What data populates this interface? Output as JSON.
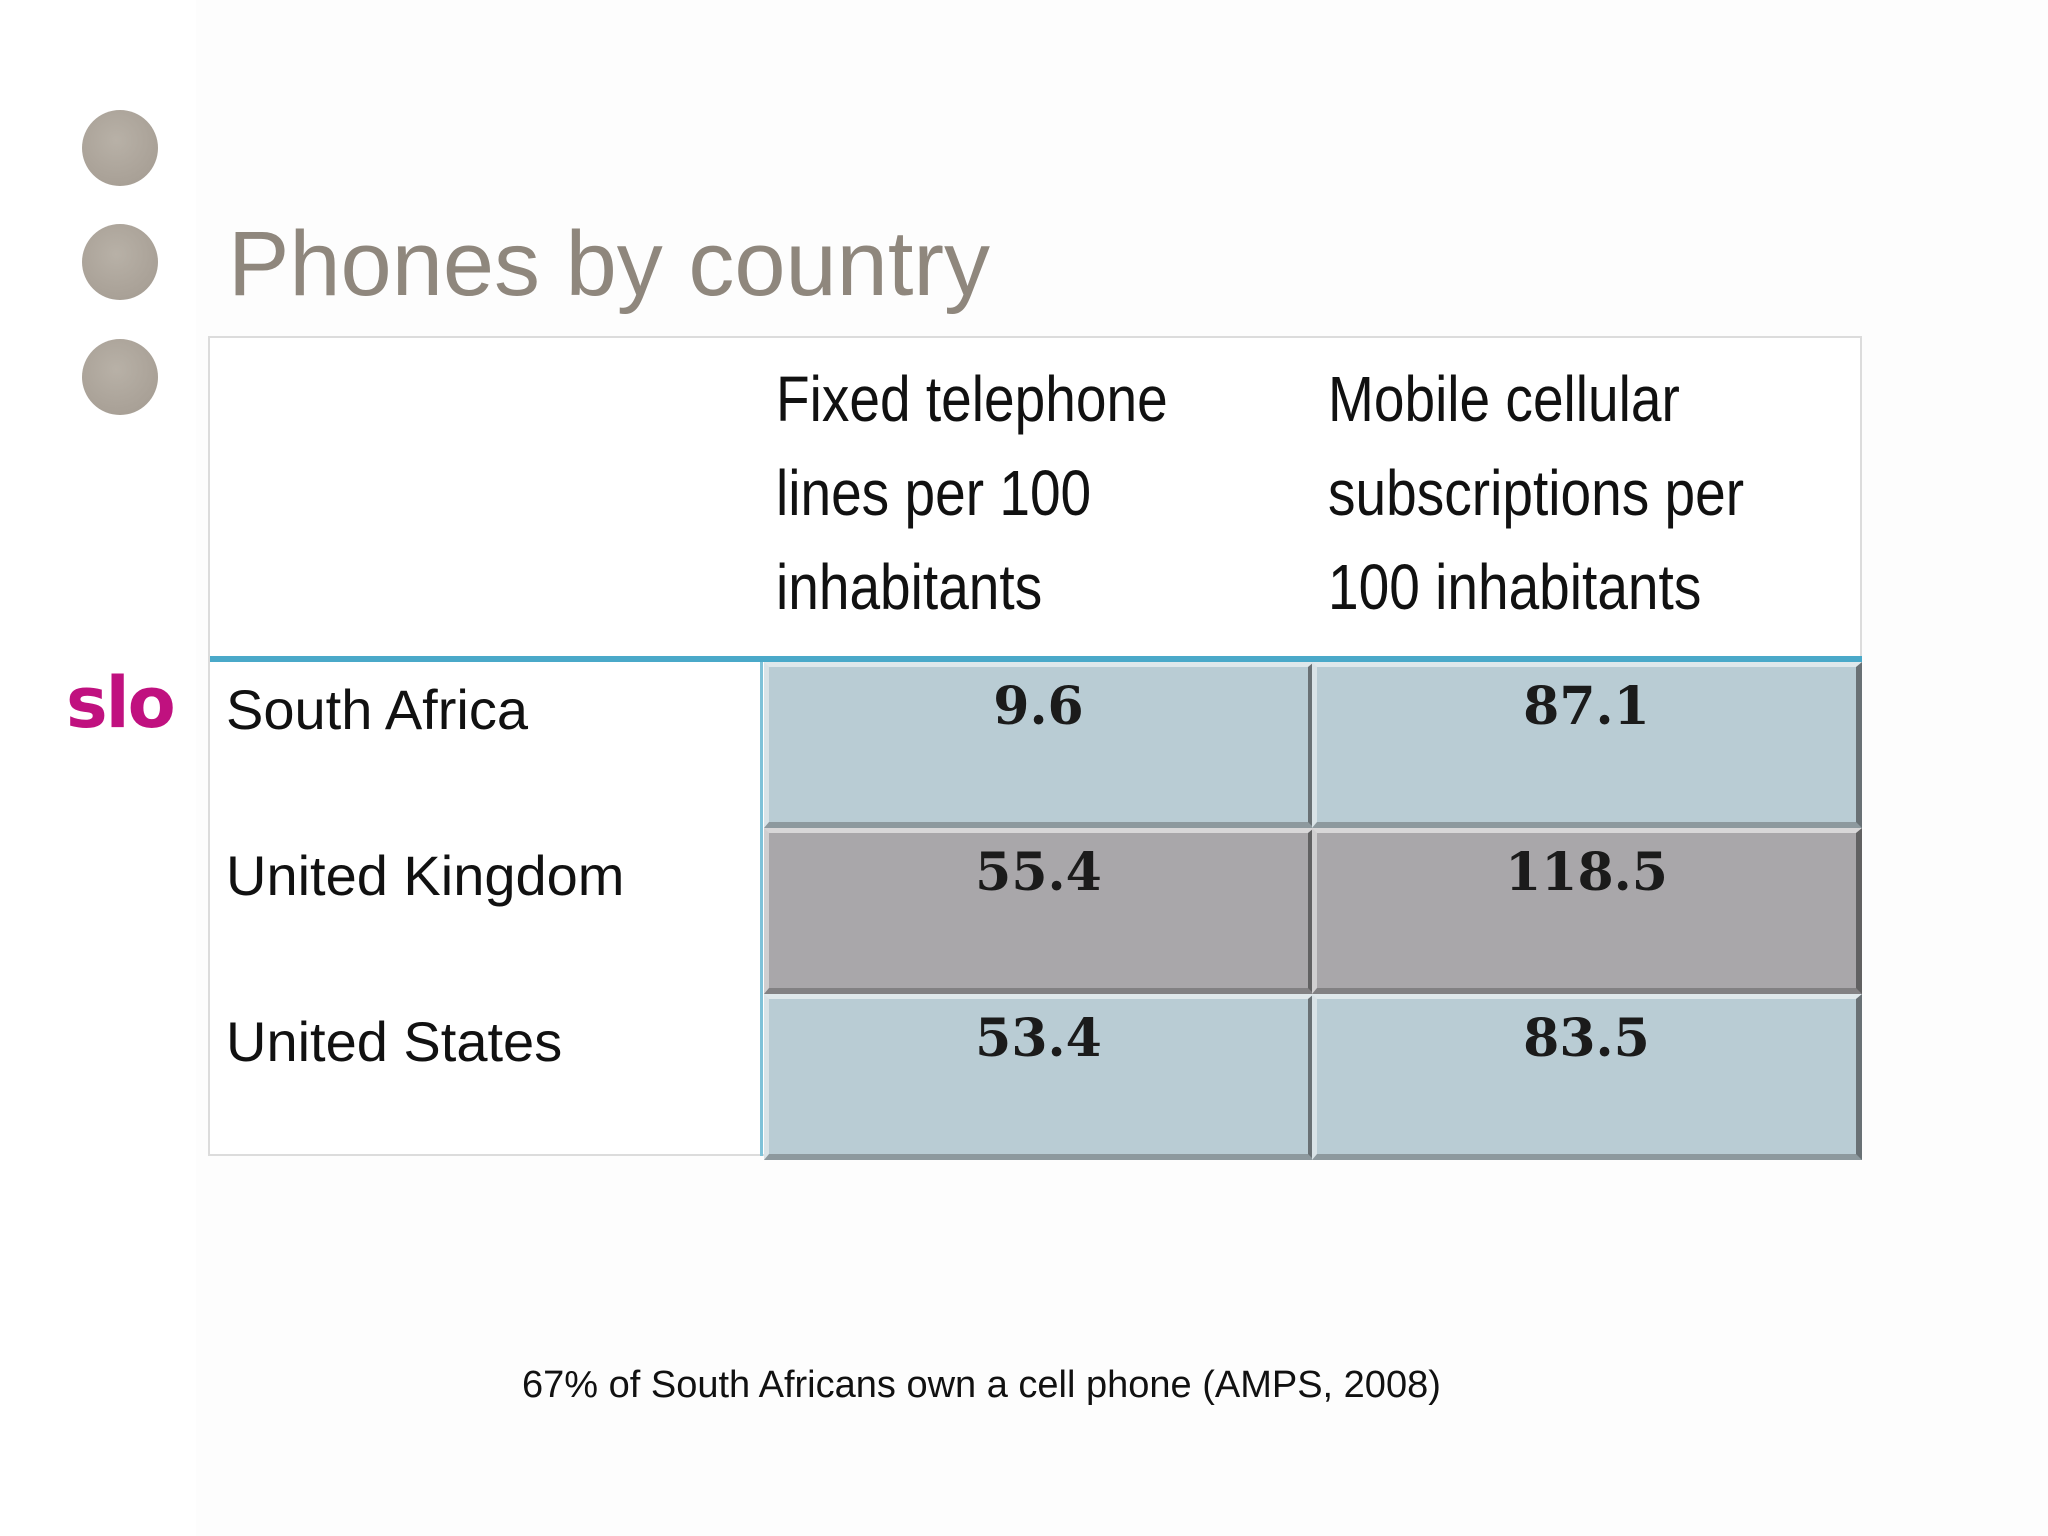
{
  "slide": {
    "title": "Phones by country",
    "logo_text": "slo",
    "footnote": "67% of South Africans own a cell phone (AMPS, 2008)"
  },
  "table": {
    "columns": [
      {
        "header_lines": [
          "Fixed telephone",
          "lines per 100",
          "inhabitants"
        ]
      },
      {
        "header_lines": [
          "Mobile cellular",
          "subscriptions per",
          "100 inhabitants"
        ]
      }
    ],
    "rows": [
      {
        "country": "South Africa",
        "fixed": "9.6",
        "mobile": "87.1"
      },
      {
        "country": "United Kingdom",
        "fixed": "55.4",
        "mobile": "118.5"
      },
      {
        "country": "United States",
        "fixed": "53.4",
        "mobile": "83.5"
      }
    ]
  },
  "colors": {
    "title": "#8f877d",
    "bullet": "#aba399",
    "logo": "#c0117f",
    "header_rule": "#4aa9c9",
    "cell_light": "#b9ccd4",
    "cell_dark": "#a9a7aa"
  }
}
